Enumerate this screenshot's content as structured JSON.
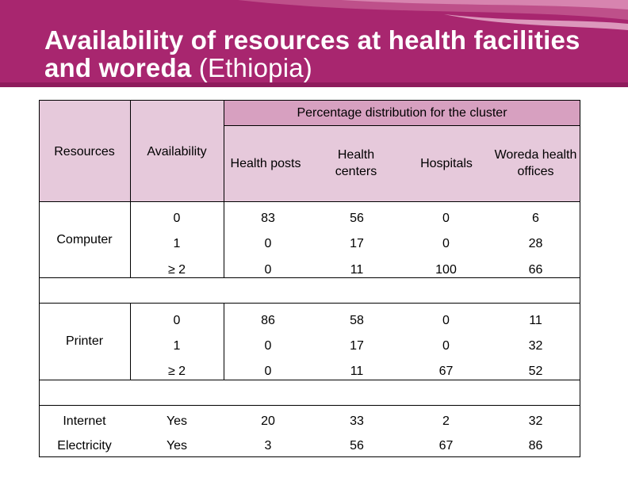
{
  "slide": {
    "title_bold": "Availability of resources at health facilities and woreda",
    "title_normal": "(Ethiopia)"
  },
  "table": {
    "cluster_header": "Percentage distribution for the cluster",
    "headers": {
      "resources": "Resources",
      "availability": "Availability",
      "health_posts": "Health posts",
      "health_centers": "Health centers",
      "hospitals": "Hospitals",
      "woreda": "Woreda health offices"
    },
    "groups": [
      {
        "resource": "Computer",
        "rows": [
          {
            "availability": "0",
            "values": [
              "83",
              "56",
              "0",
              "6"
            ]
          },
          {
            "availability": "1",
            "values": [
              "0",
              "17",
              "0",
              "28"
            ]
          },
          {
            "availability": "≥ 2",
            "values": [
              "0",
              "11",
              "100",
              "66"
            ]
          }
        ]
      },
      {
        "resource": "Printer",
        "rows": [
          {
            "availability": "0",
            "values": [
              "86",
              "58",
              "0",
              "11"
            ]
          },
          {
            "availability": "1",
            "values": [
              "0",
              "17",
              "0",
              "32"
            ]
          },
          {
            "availability": "≥ 2",
            "values": [
              "0",
              "11",
              "67",
              "52"
            ]
          }
        ]
      }
    ],
    "single_rows": [
      {
        "resource": "Internet",
        "availability": "Yes",
        "values": [
          "20",
          "33",
          "2",
          "32"
        ]
      },
      {
        "resource": "Electricity",
        "availability": "Yes",
        "values": [
          "3",
          "56",
          "67",
          "86"
        ]
      }
    ]
  }
}
